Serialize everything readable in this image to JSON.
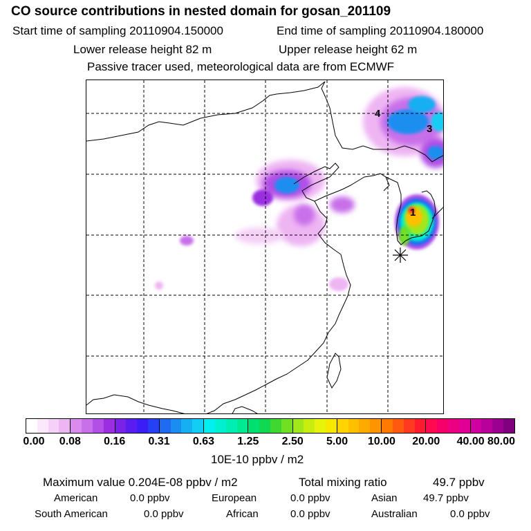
{
  "header": {
    "title": "CO  source contributions in nested domain for gosan_201109",
    "start_label": "Start time of sampling 20110904.150000",
    "end_label": "End time of sampling 20110904.180000",
    "lower_release": "Lower release height   82 m",
    "upper_release": "Upper release height   62 m",
    "tracer_note": "Passive tracer used, meteorological data are from ECMWF"
  },
  "map": {
    "markers": [
      "1",
      "3",
      "4"
    ],
    "receptor_symbol": "✳"
  },
  "colorbar": {
    "ticks": [
      "0.00",
      "0.08",
      "0.16",
      "0.31",
      "0.63",
      "1.25",
      "2.50",
      "5.00",
      "10.00",
      "20.00",
      "40.00",
      "80.00"
    ],
    "colors": [
      [
        "#ffffff",
        "#fbe8fb",
        "#f5d0f7",
        "#eeb5f3"
      ],
      [
        "#d98bee",
        "#c870ea",
        "#b14fe6",
        "#9a2ee0"
      ],
      [
        "#7a22e8",
        "#5a1cf0",
        "#3b1ef5",
        "#2540f5"
      ],
      [
        "#1f6bf2",
        "#1a8ef0",
        "#16aff2",
        "#12cdf4"
      ],
      [
        "#00f0f0",
        "#00f0d0",
        "#00eeb4",
        "#00ea94"
      ],
      [
        "#00e070",
        "#10d850",
        "#40d830",
        "#70e020"
      ],
      [
        "#a0e81a",
        "#c8ee10",
        "#e8f20a",
        "#f8e800"
      ],
      [
        "#ffd400",
        "#ffc000",
        "#ffaa00",
        "#ff9400"
      ],
      [
        "#ff7a00",
        "#ff5a10",
        "#ff3a20",
        "#ff1a30"
      ],
      [
        "#ff0a50",
        "#f5006a",
        "#ea0080",
        "#e00094"
      ],
      [
        "#d000a0",
        "#b8009a",
        "#9c0090",
        "#80007f"
      ]
    ],
    "unit": "10E-10 ppbv / m2"
  },
  "stats": {
    "maximum_label": "Maximum value  0.204E-08 ppbv / m2",
    "total_label": "Total mixing ratio",
    "total_value": "49.7 ppbv",
    "regions": [
      {
        "name": "American",
        "value": "0.0 ppbv"
      },
      {
        "name": "European",
        "value": "0.0 ppbv"
      },
      {
        "name": "Asian",
        "value": "49.7 ppbv"
      },
      {
        "name": "South American",
        "value": "0.0 ppbv"
      },
      {
        "name": "African",
        "value": "0.0 ppbv"
      },
      {
        "name": "Australian",
        "value": "0.0 ppbv"
      }
    ]
  }
}
